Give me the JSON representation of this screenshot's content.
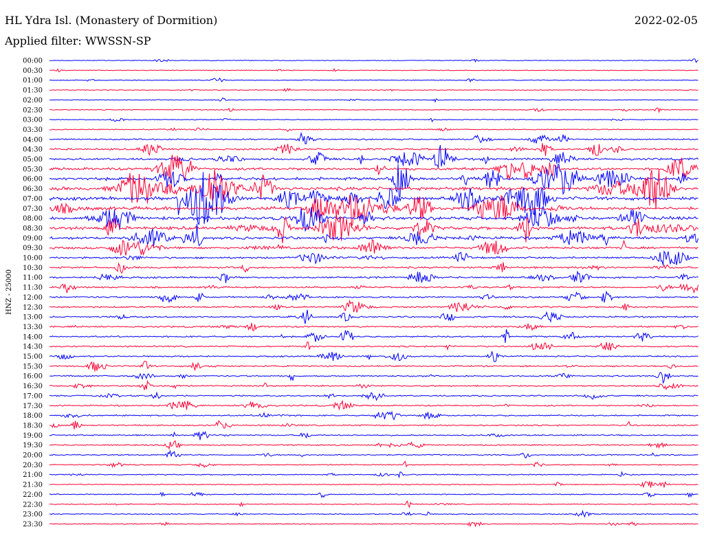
{
  "header": {
    "station": "HL Ydra Isl. (Monastery of Dormition)",
    "date": "2022-02-05",
    "filter": "Applied filter: WWSSN-SP"
  },
  "chart_data": {
    "type": "line",
    "title": "HL Ydra Isl. (Monastery of Dormition)",
    "subtitle": "Applied filter: WWSSN-SP",
    "ylabel": "HNZ - 25000",
    "xlabel": "",
    "colors": [
      "#0000ff",
      "#ff0033"
    ],
    "traces": [
      {
        "label": "00:00",
        "activity": 0.02
      },
      {
        "label": "00:30",
        "activity": 0.02
      },
      {
        "label": "01:00",
        "activity": 0.04
      },
      {
        "label": "01:30",
        "activity": 0.04
      },
      {
        "label": "02:00",
        "activity": 0.04
      },
      {
        "label": "02:30",
        "activity": 0.06
      },
      {
        "label": "03:00",
        "activity": 0.05
      },
      {
        "label": "03:30",
        "activity": 0.12
      },
      {
        "label": "04:00",
        "activity": 0.3
      },
      {
        "label": "04:30",
        "activity": 0.4
      },
      {
        "label": "05:00",
        "activity": 0.55
      },
      {
        "label": "05:30",
        "activity": 0.7
      },
      {
        "label": "06:00",
        "activity": 0.85
      },
      {
        "label": "06:30",
        "activity": 1.0
      },
      {
        "label": "07:00",
        "activity": 1.0
      },
      {
        "label": "07:30",
        "activity": 1.0
      },
      {
        "label": "08:00",
        "activity": 1.0
      },
      {
        "label": "08:30",
        "activity": 0.95
      },
      {
        "label": "09:00",
        "activity": 0.8
      },
      {
        "label": "09:30",
        "activity": 0.6
      },
      {
        "label": "10:00",
        "activity": 0.5
      },
      {
        "label": "10:30",
        "activity": 0.45
      },
      {
        "label": "11:00",
        "activity": 0.42
      },
      {
        "label": "11:30",
        "activity": 0.4
      },
      {
        "label": "12:00",
        "activity": 0.38
      },
      {
        "label": "12:30",
        "activity": 0.38
      },
      {
        "label": "13:00",
        "activity": 0.36
      },
      {
        "label": "13:30",
        "activity": 0.34
      },
      {
        "label": "14:00",
        "activity": 0.34
      },
      {
        "label": "14:30",
        "activity": 0.3
      },
      {
        "label": "15:00",
        "activity": 0.3
      },
      {
        "label": "15:30",
        "activity": 0.3
      },
      {
        "label": "16:00",
        "activity": 0.32
      },
      {
        "label": "16:30",
        "activity": 0.3
      },
      {
        "label": "17:00",
        "activity": 0.28
      },
      {
        "label": "17:30",
        "activity": 0.28
      },
      {
        "label": "18:00",
        "activity": 0.28
      },
      {
        "label": "18:30",
        "activity": 0.26
      },
      {
        "label": "19:00",
        "activity": 0.24
      },
      {
        "label": "19:30",
        "activity": 0.24
      },
      {
        "label": "20:00",
        "activity": 0.2
      },
      {
        "label": "20:30",
        "activity": 0.18
      },
      {
        "label": "21:00",
        "activity": 0.16
      },
      {
        "label": "21:30",
        "activity": 0.14
      },
      {
        "label": "22:00",
        "activity": 0.16
      },
      {
        "label": "22:30",
        "activity": 0.14
      },
      {
        "label": "23:00",
        "activity": 0.14
      },
      {
        "label": "23:30",
        "activity": 0.12
      }
    ],
    "legend": "none",
    "grid": false
  }
}
